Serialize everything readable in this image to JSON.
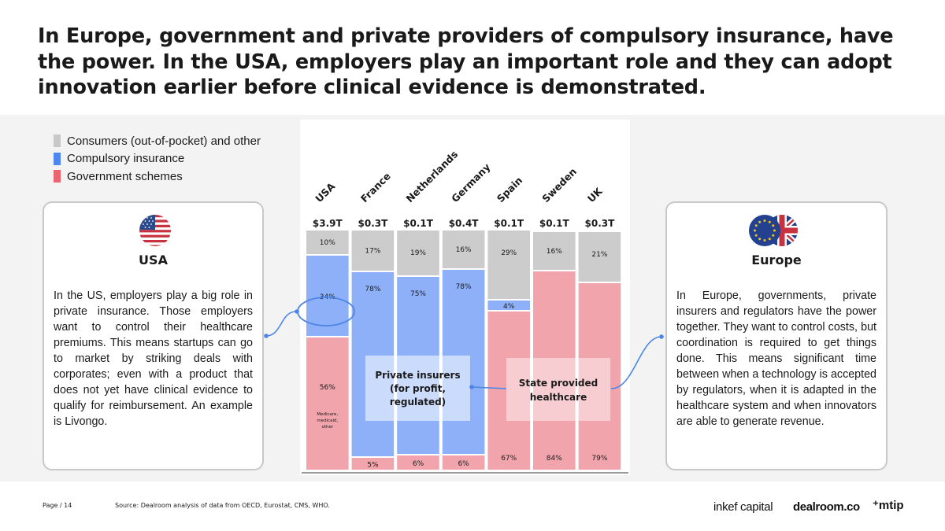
{
  "title": "In Europe, government and private providers of compulsory insurance, have the power. In the USA, employers play an important role and they can adopt innovation earlier before clinical evidence is demonstrated.",
  "colors": {
    "consumers": "#cccccc",
    "compulsory": "#8db0f8",
    "government": "#f1a4ab",
    "legend_consumers": "#c8c8c8",
    "legend_compulsory": "#4f87f2",
    "legend_government": "#ec6470",
    "connector": "#4b86e6"
  },
  "legend": [
    {
      "label": "Consumers (out-of-pocket) and other",
      "key": "consumers"
    },
    {
      "label": "Compulsory insurance",
      "key": "compulsory"
    },
    {
      "label": "Government schemes",
      "key": "government"
    }
  ],
  "left_card": {
    "title": "USA",
    "flag_icon": "us-flag-icon",
    "text": "In the US, employers play a big role in private insurance. Those employers want to control their healthcare premiums. This means startups can go to market by striking deals with corporates; even with a product that does not yet have clinical evidence to qualify for reimbursement. An example is Livongo."
  },
  "right_card": {
    "title": "Europe",
    "flag_icon": "eu-uk-flag-icon",
    "text": "In Europe, governments, private insurers and regulators have the power together. They want to control costs, but coordination is required to get things done. This means significant time between when a technology is accepted by regulators, when it is adapted in the healthcare system and when innovators are able to generate revenue."
  },
  "chart_data": {
    "type": "bar",
    "stacked": true,
    "normalized": true,
    "categories": [
      "USA",
      "France",
      "Netherlands",
      "Germany",
      "Spain",
      "Sweden",
      "UK"
    ],
    "totals": [
      "$3.9T",
      "$0.3T",
      "$0.1T",
      "$0.4T",
      "$0.1T",
      "$0.1T",
      "$0.3T"
    ],
    "series": [
      {
        "name": "Government schemes",
        "key": "government",
        "values": [
          56,
          5,
          6,
          6,
          67,
          84,
          79
        ],
        "labels": [
          "56%",
          "5%",
          "6%",
          "6%",
          "67%",
          "84%",
          "79%"
        ]
      },
      {
        "name": "Compulsory insurance",
        "key": "compulsory",
        "values": [
          34,
          78,
          75,
          78,
          4,
          0,
          0
        ],
        "labels": [
          "34%",
          "78%",
          "75%",
          "78%",
          "4%",
          "",
          ""
        ]
      },
      {
        "name": "Consumers (out-of-pocket) and other",
        "key": "consumers",
        "values": [
          10,
          17,
          19,
          16,
          29,
          16,
          21
        ],
        "labels": [
          "10%",
          "17%",
          "19%",
          "16%",
          "29%",
          "16%",
          "21%"
        ]
      }
    ],
    "usa_government_note": [
      "Medicare,",
      "medicaid,",
      "other"
    ],
    "annotations": {
      "private": [
        "Private insurers",
        "(for profit,",
        "regulated)"
      ],
      "state": [
        "State provided",
        "healthcare"
      ]
    }
  },
  "footer": {
    "page": "Page / 14",
    "source": "Source: Dealroom analysis of data from OECD, Eurostat, CMS, WHO.",
    "logo_inkef": "inkef capital",
    "logo_dealroom": "dealroom.co",
    "logo_mtip": "⁺mtip"
  }
}
